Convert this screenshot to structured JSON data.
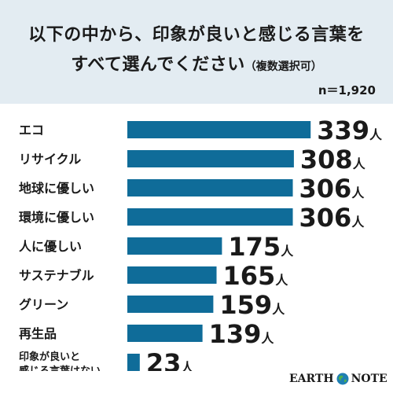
{
  "header": {
    "title_line1": "以下の中から、印象が良いと感じる言葉を",
    "title_line2": "すべて選んでください",
    "title_note": "（複数選択可）",
    "n_label": "n＝1,920"
  },
  "logo": {
    "left": "EARTH",
    "right": "NOTE"
  },
  "colors": {
    "bar": "#0f6c99",
    "header_bg": "#e3ecf2"
  },
  "chart_data": {
    "type": "bar",
    "orientation": "horizontal",
    "unit": "人",
    "categories": [
      "エコ",
      "リサイクル",
      "地球に優しい",
      "環境に優しい",
      "人に優しい",
      "サステナブル",
      "グリーン",
      "再生品",
      "印象が良いと感じる言葉はない"
    ],
    "category_lines": [
      [
        "エコ"
      ],
      [
        "リサイクル"
      ],
      [
        "地球に優しい"
      ],
      [
        "環境に優しい"
      ],
      [
        "人に優しい"
      ],
      [
        "サステナブル"
      ],
      [
        "グリーン"
      ],
      [
        "再生品"
      ],
      [
        "印象が良いと",
        "感じる言葉はない"
      ]
    ],
    "values": [
      339,
      308,
      306,
      306,
      175,
      165,
      159,
      139,
      23
    ],
    "value_labels": [
      "339",
      "308",
      "306",
      "306",
      "175",
      "165",
      "159",
      "139",
      "23"
    ]
  }
}
